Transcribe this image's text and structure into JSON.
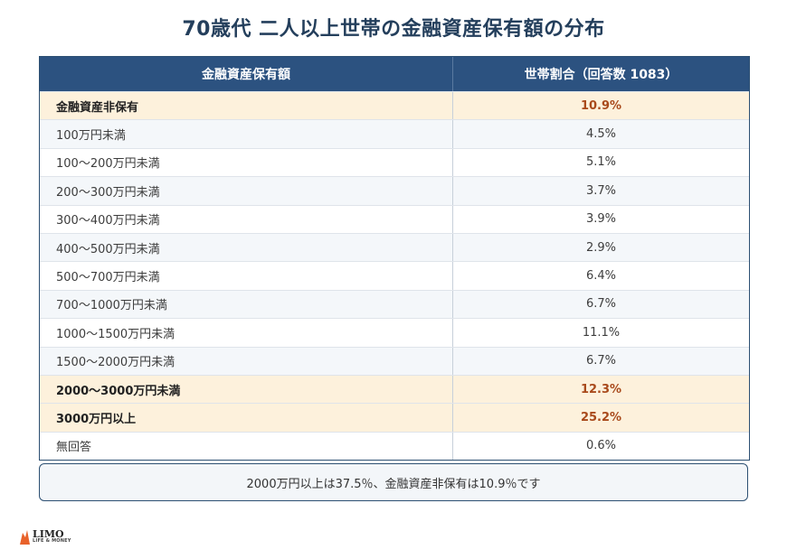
{
  "title": "70歳代 二人以上世帯の金融資産保有額の分布",
  "table": {
    "headers": [
      "金融資産保有額",
      "世帯割合（回答数 1083）"
    ],
    "rows": [
      {
        "label": "金融資産非保有",
        "value": "10.9%",
        "highlight": true
      },
      {
        "label": "100万円未満",
        "value": "4.5%",
        "highlight": false
      },
      {
        "label": "100〜200万円未満",
        "value": "5.1%",
        "highlight": false
      },
      {
        "label": "200〜300万円未満",
        "value": "3.7%",
        "highlight": false
      },
      {
        "label": "300〜400万円未満",
        "value": "3.9%",
        "highlight": false
      },
      {
        "label": "400〜500万円未満",
        "value": "2.9%",
        "highlight": false
      },
      {
        "label": "500〜700万円未満",
        "value": "6.4%",
        "highlight": false
      },
      {
        "label": "700〜1000万円未満",
        "value": "6.7%",
        "highlight": false
      },
      {
        "label": "1000〜1500万円未満",
        "value": "11.1%",
        "highlight": false
      },
      {
        "label": "1500〜2000万円未満",
        "value": "6.7%",
        "highlight": false
      },
      {
        "label": "2000〜3000万円未満",
        "value": "12.3%",
        "highlight": true
      },
      {
        "label": "3000万円以上",
        "value": "25.2%",
        "highlight": true
      },
      {
        "label": "無回答",
        "value": "0.6%",
        "highlight": false
      }
    ]
  },
  "note": "2000万円以上は37.5％、金融資産非保有は10.9％です",
  "logo": {
    "main": "LIMO",
    "sub": "LIFE & MONEY"
  },
  "colors": {
    "header_bg": "#2c5280",
    "highlight_bg": "#fdf1dc",
    "highlight_text": "#a94a1c"
  }
}
